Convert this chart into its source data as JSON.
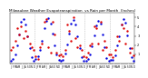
{
  "title": "Milwaukee Weather Evapotranspiration  vs Rain per Month  (Inches)",
  "title_fontsize": 3.0,
  "et_color": "#0000dd",
  "rain_color": "#dd0000",
  "bg_color": "#ffffff",
  "ylim": [
    0,
    5.5
  ],
  "et_values": [
    0.3,
    0.5,
    1.0,
    2.0,
    3.2,
    4.5,
    4.8,
    4.2,
    3.0,
    1.7,
    0.7,
    0.3,
    0.5,
    0.8,
    1.5,
    2.5,
    3.8,
    4.6,
    4.9,
    4.3,
    3.3,
    2.0,
    1.0,
    0.4,
    0.3,
    0.4,
    1.1,
    2.1,
    3.3,
    4.3,
    4.7,
    4.2,
    3.0,
    1.7,
    0.7,
    0.3,
    0.3,
    0.5,
    1.0,
    1.9,
    3.1,
    4.1,
    4.6,
    4.3,
    3.2,
    1.8,
    0.6,
    0.3,
    0.4,
    0.4,
    0.9,
    2.0,
    3.0,
    4.2,
    4.8,
    4.4,
    3.1,
    1.7,
    0.7,
    0.3
  ],
  "rain_values": [
    1.5,
    1.8,
    2.5,
    3.8,
    3.2,
    4.0,
    2.8,
    3.5,
    3.0,
    2.2,
    1.8,
    1.5,
    0.8,
    0.5,
    1.8,
    2.2,
    4.5,
    4.8,
    1.8,
    1.2,
    4.5,
    3.2,
    1.2,
    0.9,
    1.0,
    0.8,
    1.5,
    4.2,
    3.5,
    2.5,
    5.0,
    2.8,
    1.8,
    2.0,
    1.5,
    0.8,
    0.7,
    1.2,
    2.0,
    2.2,
    4.0,
    3.8,
    2.2,
    4.5,
    1.5,
    2.5,
    1.8,
    1.0,
    1.0,
    0.7,
    1.5,
    3.0,
    2.5,
    4.2,
    3.8,
    2.2,
    3.5,
    1.2,
    1.7,
    0.9
  ],
  "vline_positions": [
    12,
    24,
    36,
    48
  ],
  "months": [
    "J",
    "F",
    "M",
    "A",
    "M",
    "J",
    "J",
    "A",
    "S",
    "O",
    "N",
    "D",
    "J",
    "F",
    "M",
    "A",
    "M",
    "J",
    "J",
    "A",
    "S",
    "O",
    "N",
    "D",
    "J",
    "F",
    "M",
    "A",
    "M",
    "J",
    "J",
    "A",
    "S",
    "O",
    "N",
    "D",
    "J",
    "F",
    "M",
    "A",
    "M",
    "J",
    "J",
    "A",
    "S",
    "O",
    "N",
    "D",
    "J",
    "F",
    "M",
    "A",
    "M",
    "J",
    "J",
    "A",
    "S",
    "O",
    "N",
    "D"
  ],
  "ytick_values": [
    1,
    2,
    3,
    4,
    5
  ],
  "marker_size": 3.0
}
